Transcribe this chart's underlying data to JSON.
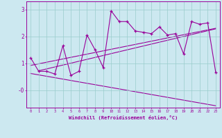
{
  "xlabel": "Windchill (Refroidissement éolien,°C)",
  "x_ticks": [
    0,
    1,
    2,
    3,
    4,
    5,
    6,
    7,
    8,
    9,
    10,
    11,
    12,
    13,
    14,
    15,
    16,
    17,
    18,
    19,
    20,
    21,
    22,
    23
  ],
  "ylim": [
    -0.65,
    3.3
  ],
  "xlim": [
    -0.5,
    23.5
  ],
  "line_color": "#990099",
  "bg_color": "#cce8f0",
  "grid_color": "#99cccc",
  "data_y": [
    1.2,
    0.7,
    0.7,
    0.6,
    1.65,
    0.55,
    0.7,
    2.05,
    1.5,
    0.85,
    2.95,
    2.55,
    2.55,
    2.2,
    2.15,
    2.1,
    2.35,
    2.05,
    2.1,
    1.35,
    2.55,
    2.45,
    2.5,
    0.65
  ],
  "trend1_x": [
    0,
    23
  ],
  "trend1_y": [
    0.92,
    2.3
  ],
  "trend2_x": [
    0,
    23
  ],
  "trend2_y": [
    0.62,
    -0.58
  ],
  "trend3_x": [
    1,
    23
  ],
  "trend3_y": [
    0.72,
    2.28
  ]
}
